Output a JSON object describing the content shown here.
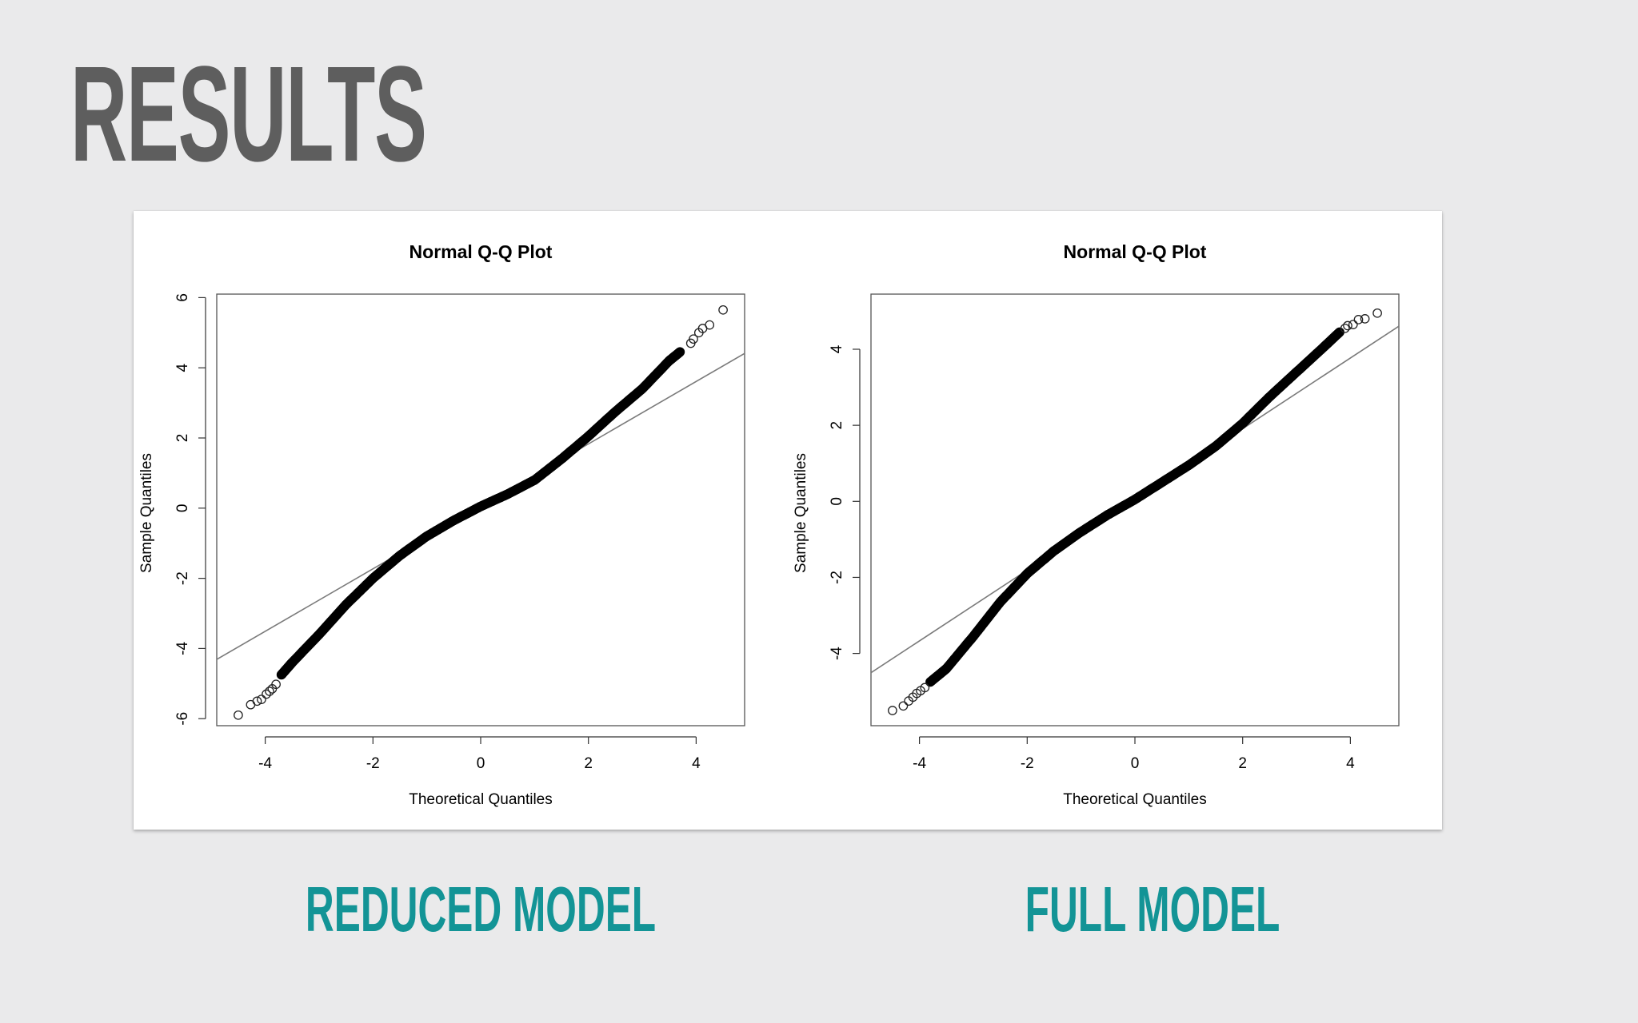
{
  "slide": {
    "title": "RESULTS",
    "colors": {
      "title": "#5e5e5e",
      "caption": "#139496",
      "background": "#eaeaeb",
      "panel": "#ffffff"
    }
  },
  "captions": {
    "left": "REDUCED MODEL",
    "right": "FULL MODEL"
  },
  "chart_data": [
    {
      "type": "scatter",
      "title": "Normal Q-Q Plot",
      "xlabel": "Theoretical Quantiles",
      "ylabel": "Sample Quantiles",
      "xlim": [
        -4.9,
        4.9
      ],
      "ylim": [
        -6.2,
        6.1
      ],
      "xticks": [
        -4,
        -2,
        0,
        2,
        4
      ],
      "xtick_labels": [
        "-4",
        "-2",
        "0",
        "2",
        "4"
      ],
      "yticks": [
        -6,
        -4,
        -2,
        0,
        2,
        4,
        6
      ],
      "ytick_labels": [
        "-6",
        "-4",
        "-2",
        "0",
        "2",
        "4",
        "6"
      ],
      "grid": false,
      "reference_line": {
        "slope": 0.89,
        "intercept": 0.05
      },
      "curve": [
        [
          -3.7,
          -4.75
        ],
        [
          -3.5,
          -4.4
        ],
        [
          -3.0,
          -3.6
        ],
        [
          -2.5,
          -2.75
        ],
        [
          -2.0,
          -2.0
        ],
        [
          -1.5,
          -1.35
        ],
        [
          -1.0,
          -0.8
        ],
        [
          -0.5,
          -0.35
        ],
        [
          0.0,
          0.05
        ],
        [
          0.5,
          0.4
        ],
        [
          1.0,
          0.8
        ],
        [
          1.5,
          1.4
        ],
        [
          2.0,
          2.05
        ],
        [
          2.5,
          2.75
        ],
        [
          3.0,
          3.4
        ],
        [
          3.5,
          4.2
        ],
        [
          3.7,
          4.45
        ]
      ],
      "tail_points": [
        [
          -4.5,
          -5.9
        ],
        [
          -4.27,
          -5.6
        ],
        [
          -4.15,
          -5.5
        ],
        [
          -4.07,
          -5.45
        ],
        [
          -3.98,
          -5.3
        ],
        [
          -3.92,
          -5.22
        ],
        [
          -3.87,
          -5.15
        ],
        [
          -3.8,
          -5.02
        ],
        [
          4.05,
          5.0
        ],
        [
          4.12,
          5.12
        ],
        [
          4.25,
          5.22
        ],
        [
          4.5,
          5.65
        ],
        [
          3.9,
          4.7
        ],
        [
          3.95,
          4.82
        ]
      ]
    },
    {
      "type": "scatter",
      "title": "Normal Q-Q Plot",
      "xlabel": "Theoretical Quantiles",
      "ylabel": "Sample Quantiles",
      "xlim": [
        -4.9,
        4.9
      ],
      "ylim": [
        -5.9,
        5.45
      ],
      "xticks": [
        -4,
        -2,
        0,
        2,
        4
      ],
      "xtick_labels": [
        "-4",
        "-2",
        "0",
        "2",
        "4"
      ],
      "yticks": [
        -4,
        -2,
        0,
        2,
        4
      ],
      "ytick_labels": [
        "-4",
        "-2",
        "0",
        "2",
        "4"
      ],
      "grid": false,
      "reference_line": {
        "slope": 0.93,
        "intercept": 0.05
      },
      "curve": [
        [
          -3.8,
          -4.75
        ],
        [
          -3.5,
          -4.4
        ],
        [
          -3.0,
          -3.55
        ],
        [
          -2.5,
          -2.65
        ],
        [
          -2.0,
          -1.9
        ],
        [
          -1.5,
          -1.3
        ],
        [
          -1.0,
          -0.8
        ],
        [
          -0.5,
          -0.35
        ],
        [
          0.0,
          0.05
        ],
        [
          0.5,
          0.5
        ],
        [
          1.0,
          0.95
        ],
        [
          1.5,
          1.45
        ],
        [
          2.0,
          2.05
        ],
        [
          2.5,
          2.75
        ],
        [
          3.0,
          3.4
        ],
        [
          3.5,
          4.05
        ],
        [
          3.8,
          4.45
        ]
      ],
      "tail_points": [
        [
          -4.5,
          -5.5
        ],
        [
          -4.3,
          -5.38
        ],
        [
          -4.2,
          -5.25
        ],
        [
          -4.12,
          -5.15
        ],
        [
          -4.05,
          -5.05
        ],
        [
          -3.98,
          -4.98
        ],
        [
          -3.9,
          -4.9
        ],
        [
          3.9,
          4.55
        ],
        [
          3.95,
          4.62
        ],
        [
          4.05,
          4.65
        ],
        [
          4.15,
          4.78
        ],
        [
          4.27,
          4.8
        ],
        [
          4.5,
          4.95
        ]
      ]
    }
  ]
}
